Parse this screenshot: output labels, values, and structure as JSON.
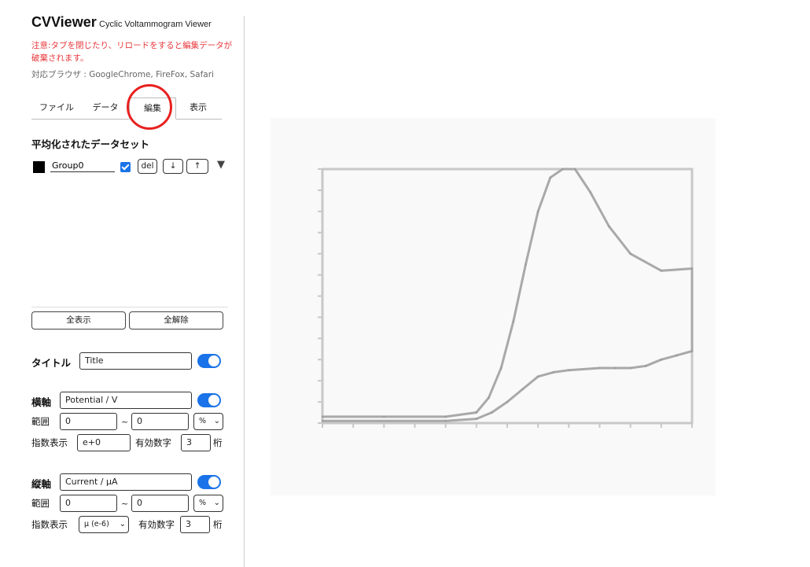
{
  "app": {
    "title": "CVViewer",
    "subtitle": "Cyclic Voltammogram Viewer",
    "warning": "注意:タブを閉じたり、リロードをすると編集データが破棄されます。",
    "browsers": "対応ブラウザ : GoogleChrome, FireFox, Safari"
  },
  "tabs": [
    {
      "label": "ファイル"
    },
    {
      "label": "データ"
    },
    {
      "label": "編集",
      "active": true
    },
    {
      "label": "表示"
    }
  ],
  "colors": {
    "accent": "#1a73e8",
    "warning": "#e8383d",
    "annotation_circle": "#e8211f"
  },
  "edit": {
    "averaged_title": "平均化されたデータセット",
    "dataset": {
      "name": "Group0",
      "color": "#000000",
      "checked": true,
      "del_label": "del",
      "down_label": "↓",
      "up_label": "↑",
      "expand_glyph": "▼"
    },
    "show_all_label": "全表示",
    "clear_all_label": "全解除"
  },
  "title_field": {
    "label": "タイトル",
    "value": "Title",
    "enabled": true
  },
  "x_axis": {
    "label": "横軸",
    "value": "Potential / V",
    "enabled": true,
    "range_label": "範囲",
    "range_from": "0",
    "range_to": "0",
    "range_unit": "%",
    "exp_label": "指数表示",
    "exp_value": "e+0",
    "sig_label": "有効数字",
    "sig_value": "3",
    "digits_label": "桁"
  },
  "y_axis": {
    "label": "縦軸",
    "value": "Current / μA",
    "enabled": true,
    "range_label": "範囲",
    "range_from": "0",
    "range_to": "0",
    "range_unit": "%",
    "exp_label": "指数表示",
    "exp_value": "μ (e-6)",
    "sig_label": "有効数字",
    "sig_value": "3",
    "digits_label": "桁"
  },
  "tilde": "~",
  "chart_data": {
    "type": "line",
    "title": "",
    "xlabel": "",
    "ylabel": "",
    "xlim": [
      0,
      12
    ],
    "ylim": [
      0,
      12
    ],
    "series": [
      {
        "x": [
          0,
          2,
          4,
          5,
          5.4,
          5.8,
          6.2,
          6.6,
          7.0,
          7.4,
          7.8,
          8.2,
          8.7,
          9.3,
          10,
          11,
          12,
          12,
          11.5,
          11,
          10.5,
          10,
          9.5,
          9,
          8,
          7.5,
          7,
          6.5,
          6,
          5.5,
          5,
          4,
          0
        ],
        "y": [
          0.3,
          0.3,
          0.3,
          0.5,
          1.2,
          2.6,
          4.8,
          7.5,
          10.0,
          11.6,
          12.0,
          12.0,
          10.9,
          9.3,
          8.0,
          7.2,
          7.3,
          3.4,
          3.2,
          3.0,
          2.7,
          2.6,
          2.6,
          2.6,
          2.5,
          2.4,
          2.2,
          1.6,
          1.0,
          0.5,
          0.2,
          0.1,
          0.1
        ]
      }
    ]
  }
}
